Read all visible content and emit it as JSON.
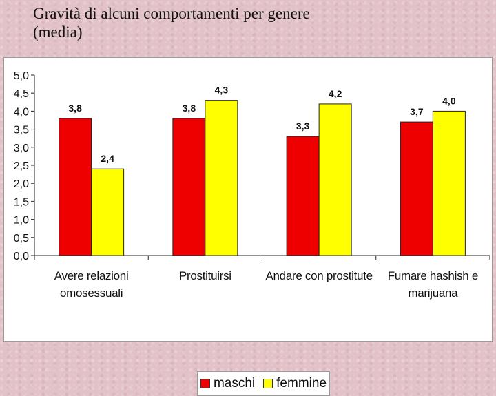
{
  "slide": {
    "title_line1": "Gravità di alcuni comportamenti per genere",
    "title_line2": "(media)"
  },
  "chart_data": {
    "type": "bar",
    "title": "",
    "xlabel": "",
    "ylabel": "",
    "ylim": [
      0,
      5
    ],
    "ytick_step": 0.5,
    "yticks": [
      "0,0",
      "0,5",
      "1,0",
      "1,5",
      "2,0",
      "2,5",
      "3,0",
      "3,5",
      "4,0",
      "4,5",
      "5,0"
    ],
    "categories": [
      [
        "Avere relazioni",
        "omosessuali"
      ],
      [
        "Prostituirsi"
      ],
      [
        "Andare con prostitute"
      ],
      [
        "Fumare hashish e",
        "marijuana"
      ]
    ],
    "series": [
      {
        "name": "maschi",
        "color": "#ee0000",
        "values": [
          3.8,
          3.8,
          3.3,
          3.7
        ],
        "labels": [
          "3,8",
          "3,8",
          "3,3",
          "3,7"
        ]
      },
      {
        "name": "femmine",
        "color": "#ffff00",
        "values": [
          2.4,
          4.3,
          4.2,
          4.0
        ],
        "labels": [
          "2,4",
          "4,3",
          "4,2",
          "4,0"
        ]
      }
    ],
    "legend": "bottom"
  }
}
